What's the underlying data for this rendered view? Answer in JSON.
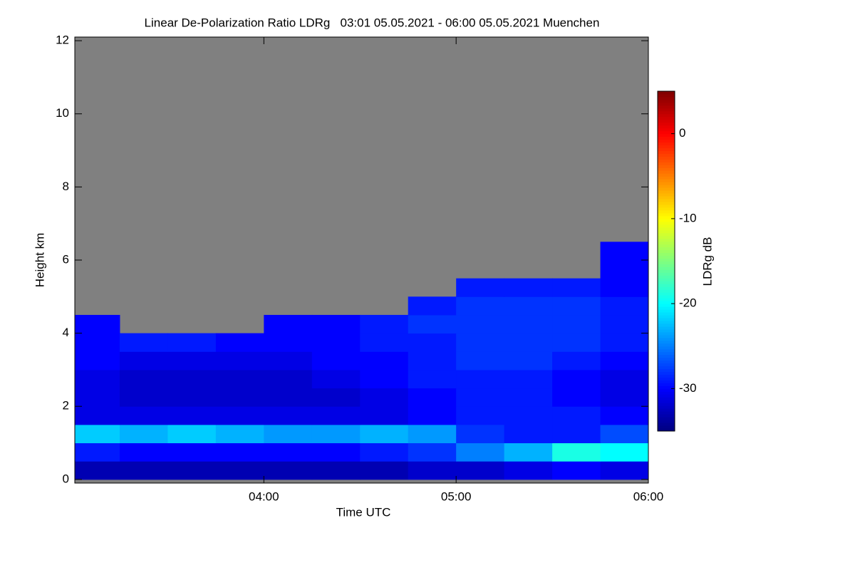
{
  "chart_data": {
    "type": "heatmap",
    "title": "Linear De-Polarization Ratio LDRg   03:01 05.05.2021 - 06:00 05.05.2021 Muenchen",
    "x_label": "Time UTC",
    "y_label": "Height km",
    "colorbar_label": "LDRg dB",
    "xlim": [
      181,
      360
    ],
    "xticks": [
      {
        "value": 240,
        "label": "04:00"
      },
      {
        "value": 300,
        "label": "05:00"
      },
      {
        "value": 360,
        "label": "06:00"
      }
    ],
    "ylim": [
      -0.1,
      12.1
    ],
    "yticks": [
      0,
      2,
      4,
      6,
      8,
      10,
      12
    ],
    "clim": [
      -35,
      5
    ],
    "cticks": [
      0,
      -10,
      -20,
      -30
    ],
    "no_data_color": "#808080",
    "colormap": [
      "#00007f",
      "#0000ff",
      "#007fff",
      "#00ffff",
      "#7fff7f",
      "#ffff00",
      "#ff7f00",
      "#ff0000",
      "#7f0000"
    ],
    "x_edges": [
      181,
      195,
      210,
      225,
      240,
      255,
      270,
      285,
      300,
      315,
      330,
      345,
      360
    ],
    "y_edges": [
      0,
      0.5,
      1,
      1.5,
      2,
      2.5,
      3,
      3.5,
      4,
      4.5,
      5,
      5.5,
      6,
      6.5
    ],
    "z": [
      [
        -33,
        -33,
        -33,
        -33,
        -33,
        -33,
        -33,
        -32,
        -32,
        -31,
        -30,
        -31
      ],
      [
        -29,
        -30,
        -30,
        -30,
        -30,
        -30,
        -29,
        -28,
        -25,
        -23,
        -19,
        -20
      ],
      [
        -22,
        -23,
        -22,
        -23,
        -24,
        -24,
        -23,
        -24,
        -28,
        -29,
        -29,
        -27
      ],
      [
        -31,
        -31,
        -31,
        -31,
        -31,
        -31,
        -31,
        -30,
        -29,
        -29,
        -29,
        -30
      ],
      [
        -31,
        -32,
        -32,
        -32,
        -32,
        -32,
        -31,
        -30,
        -29,
        -29,
        -30,
        -31
      ],
      [
        -31,
        -32,
        -32,
        -32,
        -32,
        -31,
        -30,
        -29,
        -29,
        -29,
        -30,
        -31
      ],
      [
        -30,
        -31,
        -31,
        -31,
        -31,
        -30,
        -30,
        -29,
        -28,
        -28,
        -29,
        -30
      ],
      [
        -30,
        -29,
        -29,
        -30,
        -30,
        -30,
        -29,
        -29,
        -28,
        -28,
        -28,
        -29
      ],
      [
        -30,
        null,
        null,
        null,
        -30,
        -30,
        -29,
        -28,
        -28,
        -28,
        -28,
        -29
      ],
      [
        null,
        null,
        null,
        null,
        null,
        null,
        null,
        -29,
        -28,
        -28,
        -28,
        -29
      ],
      [
        null,
        null,
        null,
        null,
        null,
        null,
        null,
        null,
        -29,
        -29,
        -29,
        -30
      ],
      [
        null,
        null,
        null,
        null,
        null,
        null,
        null,
        null,
        null,
        null,
        null,
        -30
      ],
      [
        null,
        null,
        null,
        null,
        null,
        null,
        null,
        null,
        null,
        null,
        null,
        -30
      ]
    ]
  }
}
